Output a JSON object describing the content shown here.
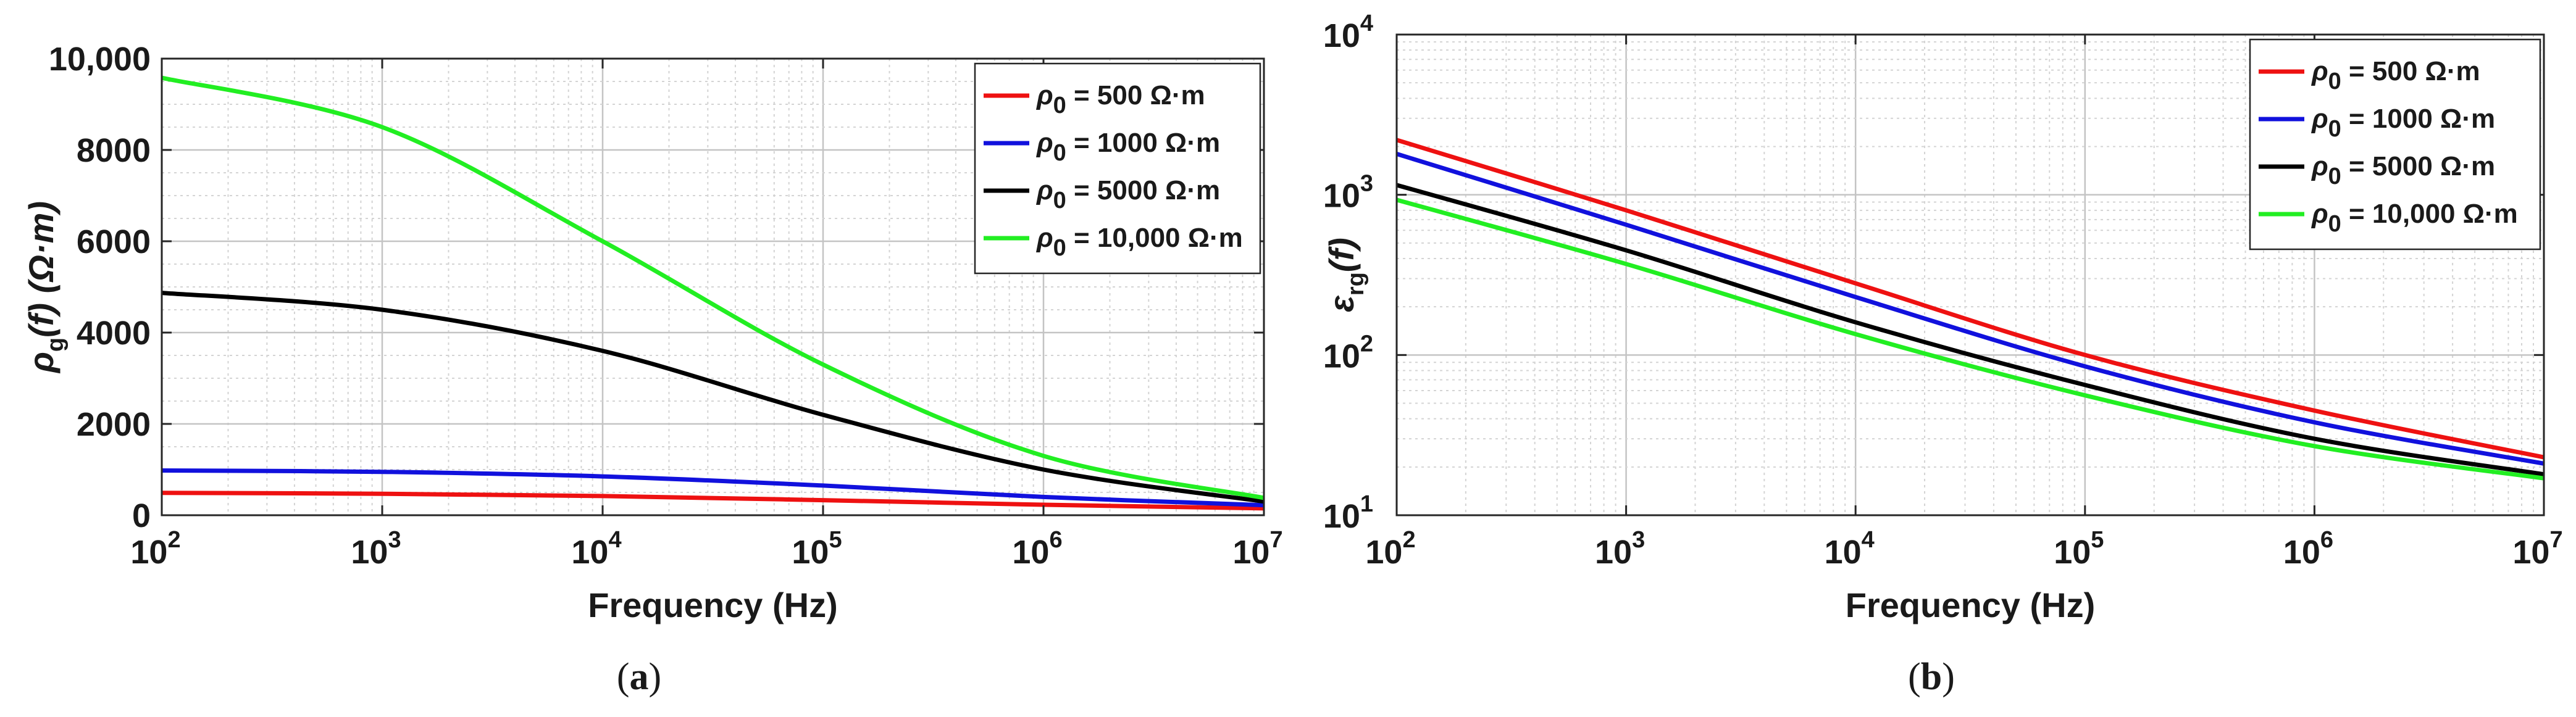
{
  "chart_data": [
    {
      "id": "a",
      "type": "line",
      "caption_letter": "a",
      "xlabel": "Frequency (Hz)",
      "ylabel": {
        "main": "ρ",
        "sub": "g",
        "rest": "(f) (Ω·m)"
      },
      "xscale": "log",
      "yscale": "linear",
      "xlim": [
        100,
        10000000
      ],
      "ylim": [
        0,
        10000
      ],
      "xticks": [
        {
          "base": "10",
          "exp": "2"
        },
        {
          "base": "10",
          "exp": "3"
        },
        {
          "base": "10",
          "exp": "4"
        },
        {
          "base": "10",
          "exp": "5"
        },
        {
          "base": "10",
          "exp": "6"
        },
        {
          "base": "10",
          "exp": "7"
        }
      ],
      "yticks": [
        {
          "value": 0,
          "label": "0"
        },
        {
          "value": 2000,
          "label": "2000"
        },
        {
          "value": 4000,
          "label": "4000"
        },
        {
          "value": 6000,
          "label": "6000"
        },
        {
          "value": 8000,
          "label": "8000"
        },
        {
          "value": 10000,
          "label": "10,000"
        }
      ],
      "grid": true,
      "legend_position": "top-right",
      "x": [
        100,
        1000,
        10000,
        100000,
        1000000,
        10000000
      ],
      "series": [
        {
          "sym": "ρ",
          "sub": "0",
          "rest": " = 500 Ω·m",
          "color": "#ee1111",
          "values": [
            490,
            470,
            420,
            330,
            230,
            150
          ]
        },
        {
          "sym": "ρ",
          "sub": "0",
          "rest": " = 1000 Ω·m",
          "color": "#1111dd",
          "values": [
            980,
            950,
            850,
            650,
            400,
            220
          ]
        },
        {
          "sym": "ρ",
          "sub": "0",
          "rest": " = 5000 Ω·m",
          "color": "#000000",
          "values": [
            4870,
            4500,
            3600,
            2200,
            1000,
            300
          ]
        },
        {
          "sym": "ρ",
          "sub": "0",
          "rest": " = 10,000 Ω·m",
          "color": "#22ee22",
          "values": [
            9580,
            8500,
            6000,
            3300,
            1300,
            380
          ]
        }
      ]
    },
    {
      "id": "b",
      "type": "line",
      "caption_letter": "b",
      "xlabel": "Frequency (Hz)",
      "ylabel": {
        "main": "ε",
        "sub": "rg",
        "rest": "(f)"
      },
      "xscale": "log",
      "yscale": "log",
      "xlim": [
        100,
        10000000
      ],
      "ylim": [
        10,
        10000
      ],
      "xticks": [
        {
          "base": "10",
          "exp": "2"
        },
        {
          "base": "10",
          "exp": "3"
        },
        {
          "base": "10",
          "exp": "4"
        },
        {
          "base": "10",
          "exp": "5"
        },
        {
          "base": "10",
          "exp": "6"
        },
        {
          "base": "10",
          "exp": "7"
        }
      ],
      "yticks": [
        {
          "value": 10,
          "base": "10",
          "exp": "1"
        },
        {
          "value": 100,
          "base": "10",
          "exp": "2"
        },
        {
          "value": 1000,
          "base": "10",
          "exp": "3"
        },
        {
          "value": 10000,
          "base": "10",
          "exp": "4"
        }
      ],
      "grid": true,
      "legend_position": "top-right",
      "x": [
        100,
        1000,
        10000,
        100000,
        1000000,
        10000000
      ],
      "series": [
        {
          "sym": "ρ",
          "sub": "0",
          "rest": " = 500 Ω·m",
          "color": "#ee1111",
          "values": [
            2200,
            800,
            280,
            100,
            45,
            23
          ]
        },
        {
          "sym": "ρ",
          "sub": "0",
          "rest": " = 1000 Ω·m",
          "color": "#1111dd",
          "values": [
            1800,
            650,
            230,
            85,
            38,
            21
          ]
        },
        {
          "sym": "ρ",
          "sub": "0",
          "rest": " = 5000 Ω·m",
          "color": "#000000",
          "values": [
            1150,
            450,
            160,
            65,
            30,
            18
          ]
        },
        {
          "sym": "ρ",
          "sub": "0",
          "rest": " = 10,000 Ω·m",
          "color": "#22ee22",
          "values": [
            930,
            370,
            135,
            56,
            27,
            17
          ]
        }
      ]
    }
  ]
}
